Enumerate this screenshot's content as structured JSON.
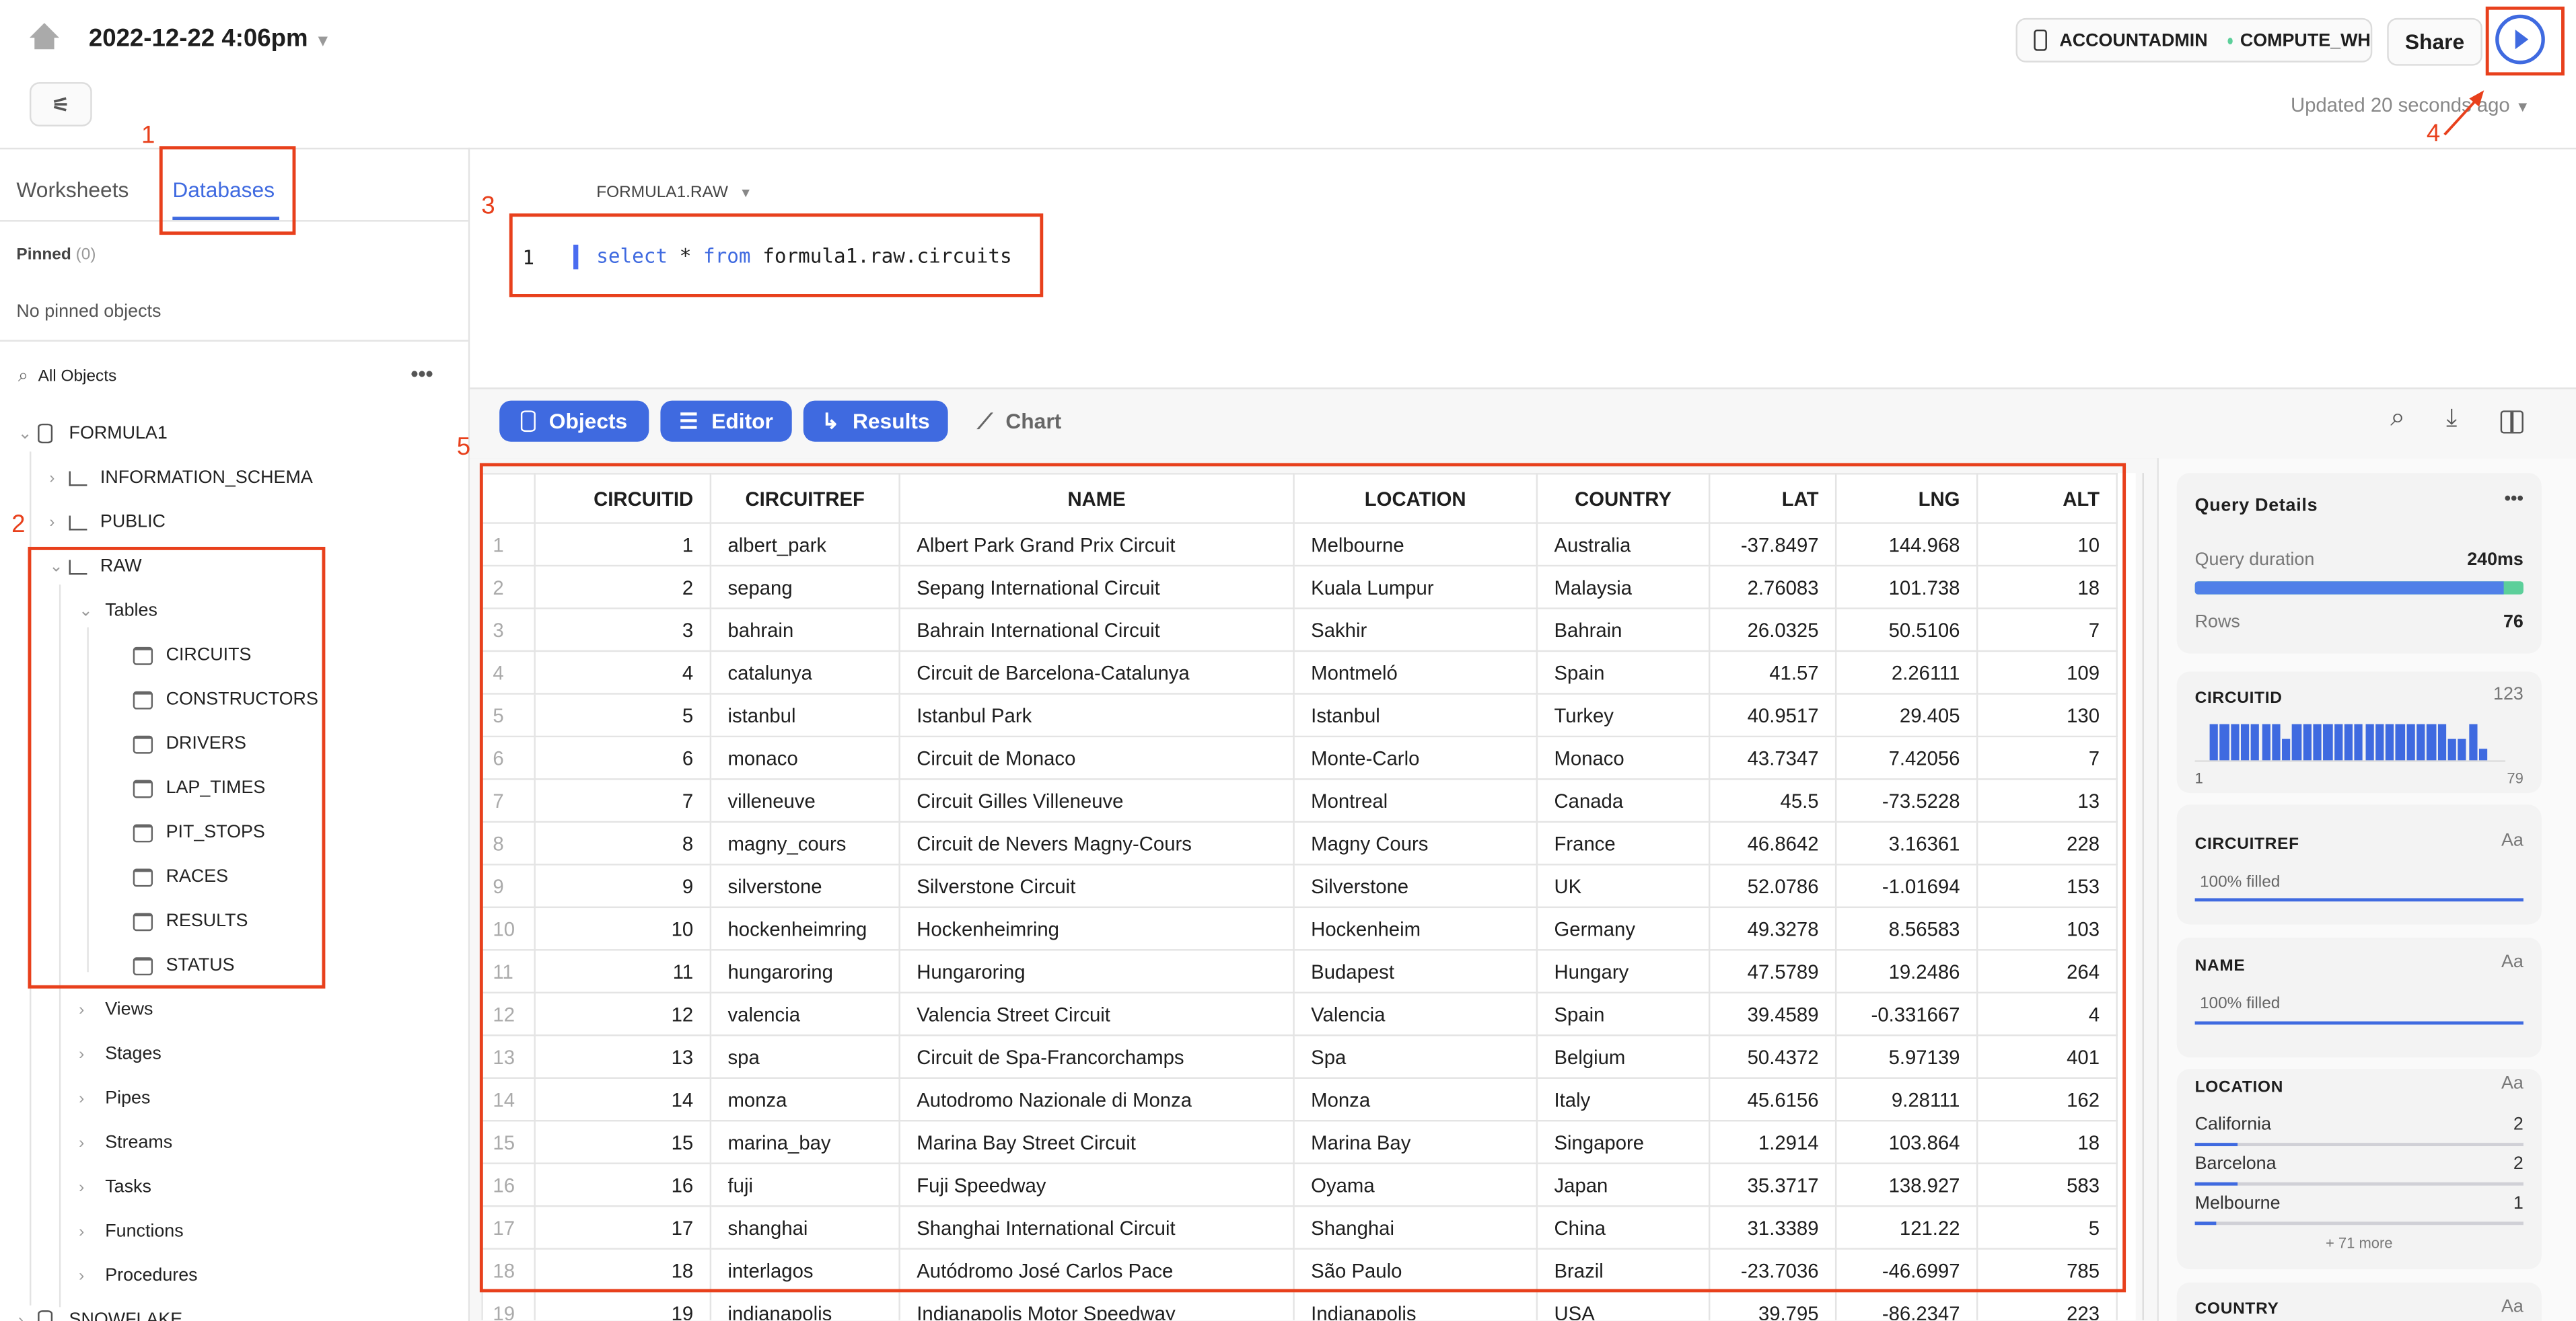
{
  "header": {
    "title": "2022-12-22 4:06pm",
    "role": "ACCOUNTADMIN",
    "warehouse": "COMPUTE_WH",
    "share_label": "Share",
    "updated": "Updated 20 seconds ago"
  },
  "sidebar": {
    "tabs": [
      "Worksheets",
      "Databases"
    ],
    "active_tab": "Databases",
    "pinned_label": "Pinned",
    "pinned_count": "(0)",
    "no_pinned": "No pinned objects",
    "all_objects": "All Objects",
    "tree": [
      {
        "label": "FORMULA1",
        "type": "database",
        "level": 0,
        "expanded": true
      },
      {
        "label": "INFORMATION_SCHEMA",
        "type": "schema",
        "level": 1,
        "expanded": false
      },
      {
        "label": "PUBLIC",
        "type": "schema",
        "level": 1,
        "expanded": false
      },
      {
        "label": "RAW",
        "type": "schema",
        "level": 1,
        "expanded": true
      },
      {
        "label": "Tables",
        "type": "folder",
        "level": 2,
        "expanded": true
      },
      {
        "label": "CIRCUITS",
        "type": "table",
        "level": 3
      },
      {
        "label": "CONSTRUCTORS",
        "type": "table",
        "level": 3
      },
      {
        "label": "DRIVERS",
        "type": "table",
        "level": 3
      },
      {
        "label": "LAP_TIMES",
        "type": "table",
        "level": 3
      },
      {
        "label": "PIT_STOPS",
        "type": "table",
        "level": 3
      },
      {
        "label": "RACES",
        "type": "table",
        "level": 3
      },
      {
        "label": "RESULTS",
        "type": "table",
        "level": 3
      },
      {
        "label": "STATUS",
        "type": "table",
        "level": 3
      },
      {
        "label": "Views",
        "type": "folder",
        "level": 2,
        "expanded": false
      },
      {
        "label": "Stages",
        "type": "folder",
        "level": 2,
        "expanded": false
      },
      {
        "label": "Pipes",
        "type": "folder",
        "level": 2,
        "expanded": false
      },
      {
        "label": "Streams",
        "type": "folder",
        "level": 2,
        "expanded": false
      },
      {
        "label": "Tasks",
        "type": "folder",
        "level": 2,
        "expanded": false
      },
      {
        "label": "Functions",
        "type": "folder",
        "level": 2,
        "expanded": false
      },
      {
        "label": "Procedures",
        "type": "folder",
        "level": 2,
        "expanded": false
      },
      {
        "label": "SNOWFLAKE",
        "type": "database",
        "level": 0,
        "expanded": false
      }
    ]
  },
  "editor": {
    "context": "FORMULA1.RAW",
    "line_number": "1",
    "code": {
      "kw1": "select",
      "star": " * ",
      "kw2": "from",
      "rest": " formula1.raw.circuits"
    }
  },
  "toolbar": {
    "objects": "Objects",
    "editor": "Editor",
    "results": "Results",
    "chart": "Chart"
  },
  "results": {
    "columns": [
      "CIRCUITID",
      "CIRCUITREF",
      "NAME",
      "LOCATION",
      "COUNTRY",
      "LAT",
      "LNG",
      "ALT"
    ],
    "rows": [
      [
        "1",
        "albert_park",
        "Albert Park Grand Prix Circuit",
        "Melbourne",
        "Australia",
        "-37.8497",
        "144.968",
        "10"
      ],
      [
        "2",
        "sepang",
        "Sepang International Circuit",
        "Kuala Lumpur",
        "Malaysia",
        "2.76083",
        "101.738",
        "18"
      ],
      [
        "3",
        "bahrain",
        "Bahrain International Circuit",
        "Sakhir",
        "Bahrain",
        "26.0325",
        "50.5106",
        "7"
      ],
      [
        "4",
        "catalunya",
        "Circuit de Barcelona-Catalunya",
        "Montmeló",
        "Spain",
        "41.57",
        "2.26111",
        "109"
      ],
      [
        "5",
        "istanbul",
        "Istanbul Park",
        "Istanbul",
        "Turkey",
        "40.9517",
        "29.405",
        "130"
      ],
      [
        "6",
        "monaco",
        "Circuit de Monaco",
        "Monte-Carlo",
        "Monaco",
        "43.7347",
        "7.42056",
        "7"
      ],
      [
        "7",
        "villeneuve",
        "Circuit Gilles Villeneuve",
        "Montreal",
        "Canada",
        "45.5",
        "-73.5228",
        "13"
      ],
      [
        "8",
        "magny_cours",
        "Circuit de Nevers Magny-Cours",
        "Magny Cours",
        "France",
        "46.8642",
        "3.16361",
        "228"
      ],
      [
        "9",
        "silverstone",
        "Silverstone Circuit",
        "Silverstone",
        "UK",
        "52.0786",
        "-1.01694",
        "153"
      ],
      [
        "10",
        "hockenheimring",
        "Hockenheimring",
        "Hockenheim",
        "Germany",
        "49.3278",
        "8.56583",
        "103"
      ],
      [
        "11",
        "hungaroring",
        "Hungaroring",
        "Budapest",
        "Hungary",
        "47.5789",
        "19.2486",
        "264"
      ],
      [
        "12",
        "valencia",
        "Valencia Street Circuit",
        "Valencia",
        "Spain",
        "39.4589",
        "-0.331667",
        "4"
      ],
      [
        "13",
        "spa",
        "Circuit de Spa-Francorchamps",
        "Spa",
        "Belgium",
        "50.4372",
        "5.97139",
        "401"
      ],
      [
        "14",
        "monza",
        "Autodromo Nazionale di Monza",
        "Monza",
        "Italy",
        "45.6156",
        "9.28111",
        "162"
      ],
      [
        "15",
        "marina_bay",
        "Marina Bay Street Circuit",
        "Marina Bay",
        "Singapore",
        "1.2914",
        "103.864",
        "18"
      ],
      [
        "16",
        "fuji",
        "Fuji Speedway",
        "Oyama",
        "Japan",
        "35.3717",
        "138.927",
        "583"
      ],
      [
        "17",
        "shanghai",
        "Shanghai International Circuit",
        "Shanghai",
        "China",
        "31.3389",
        "121.22",
        "5"
      ],
      [
        "18",
        "interlagos",
        "Autódromo José Carlos Pace",
        "São Paulo",
        "Brazil",
        "-23.7036",
        "-46.6997",
        "785"
      ],
      [
        "19",
        "indianapolis",
        "Indianapolis Motor Speedway",
        "Indianapolis",
        "USA",
        "39.795",
        "-86.2347",
        "223"
      ]
    ]
  },
  "details": {
    "title": "Query Details",
    "duration_label": "Query duration",
    "duration": "240ms",
    "duration_fraction": 0.94,
    "rows_label": "Rows",
    "rows": "76",
    "circuitid": {
      "name": "CIRCUITID",
      "type": "123",
      "min": "1",
      "max": "79",
      "histogram": [
        1,
        1,
        1,
        1,
        1,
        1,
        1,
        0.6,
        1,
        1,
        1,
        1,
        1,
        1,
        1,
        1,
        1,
        1,
        1,
        1,
        1,
        1,
        1,
        0.6,
        0.6,
        1,
        0.3
      ]
    },
    "circuitref": {
      "name": "CIRCUITREF",
      "type": "Aa",
      "filled": "100% filled"
    },
    "name": {
      "name": "NAME",
      "type": "Aa",
      "filled": "100% filled"
    },
    "location": {
      "name": "LOCATION",
      "type": "Aa",
      "values": [
        {
          "label": "California",
          "count": "2"
        },
        {
          "label": "Barcelona",
          "count": "2"
        },
        {
          "label": "Melbourne",
          "count": "1"
        }
      ],
      "more": "+ 71 more"
    },
    "country": {
      "name": "COUNTRY",
      "type": "Aa"
    }
  },
  "annotations": [
    "1",
    "2",
    "3",
    "4",
    "5"
  ],
  "colors": {
    "accent": "#3f6ae0",
    "annotation": "#e8401c",
    "success": "#5ccf9a"
  }
}
